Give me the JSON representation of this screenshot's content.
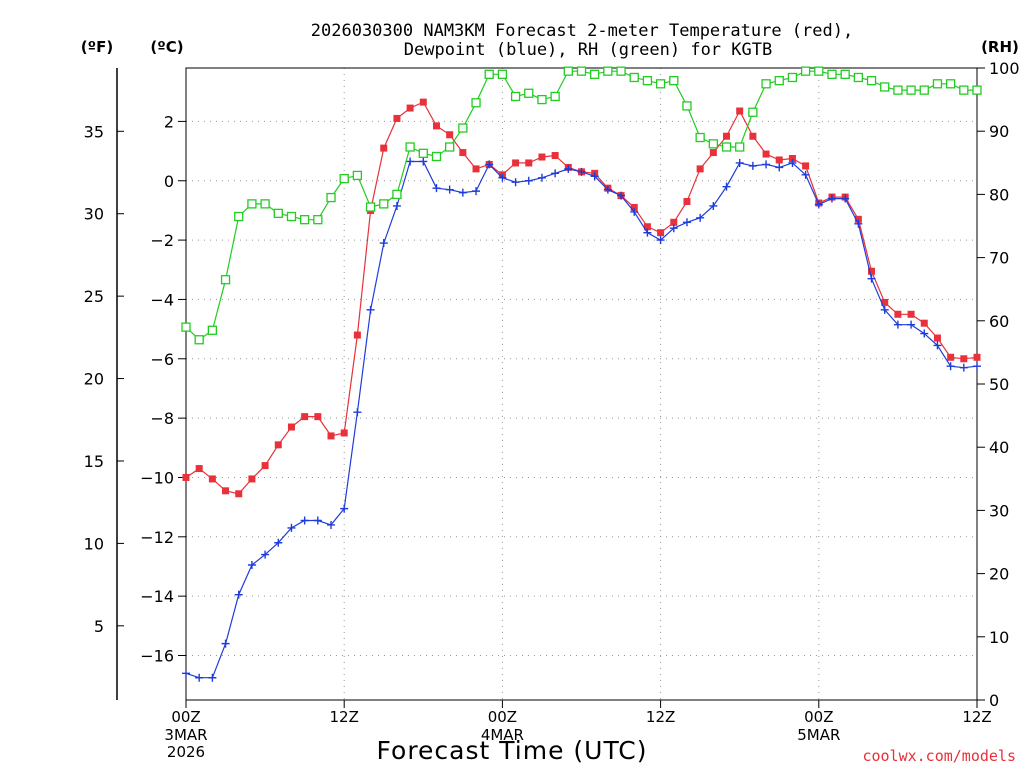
{
  "chart_data": {
    "type": "line",
    "title_line1": "2026030300 NAM3KM Forecast 2-meter Temperature (red),",
    "title_line2": "Dewpoint (blue), RH (green) for KGTB",
    "xlabel": "Forecast Time (UTC)",
    "credit": "coolwx.com/models",
    "unit_f": "(ºF)",
    "unit_c": "(ºC)",
    "unit_rh": "(RH)",
    "hours_range": [
      0,
      60
    ],
    "celsius_range": [
      -17.5,
      3.8
    ],
    "rh_range": [
      0,
      100
    ],
    "x_ticks": [
      {
        "hour": 0,
        "label": "00Z",
        "sub1": "3MAR",
        "sub2": "2026"
      },
      {
        "hour": 12,
        "label": "12Z",
        "sub1": "",
        "sub2": ""
      },
      {
        "hour": 24,
        "label": "00Z",
        "sub1": "4MAR",
        "sub2": ""
      },
      {
        "hour": 36,
        "label": "12Z",
        "sub1": "",
        "sub2": ""
      },
      {
        "hour": 48,
        "label": "00Z",
        "sub1": "5MAR",
        "sub2": ""
      },
      {
        "hour": 60,
        "label": "12Z",
        "sub1": "",
        "sub2": ""
      }
    ],
    "celsius_ticks": [
      2,
      0,
      -2,
      -4,
      -6,
      -8,
      -10,
      -12,
      -14,
      -16
    ],
    "fahrenheit_ticks": [
      35,
      30,
      25,
      20,
      15,
      10,
      5
    ],
    "rh_ticks": [
      100,
      90,
      80,
      70,
      60,
      50,
      40,
      30,
      20,
      10,
      0
    ],
    "hours": [
      0,
      1,
      2,
      3,
      4,
      5,
      6,
      7,
      8,
      9,
      10,
      11,
      12,
      13,
      14,
      15,
      16,
      17,
      18,
      19,
      20,
      21,
      22,
      23,
      24,
      25,
      26,
      27,
      28,
      29,
      30,
      31,
      32,
      33,
      34,
      35,
      36,
      37,
      38,
      39,
      40,
      41,
      42,
      43,
      44,
      45,
      46,
      47,
      48,
      49,
      50,
      51,
      52,
      53,
      54,
      55,
      56,
      57,
      58,
      59,
      60
    ],
    "series": [
      {
        "name": "Temperature",
        "color": "#e8313a",
        "values": [
          -10.0,
          -9.7,
          -10.05,
          -10.45,
          -10.55,
          -10.05,
          -9.6,
          -8.9,
          -8.3,
          -7.95,
          -7.95,
          -8.6,
          -8.5,
          -5.2,
          -1.0,
          1.1,
          2.1,
          2.45,
          2.65,
          1.85,
          1.55,
          0.95,
          0.4,
          0.55,
          0.2,
          0.6,
          0.6,
          0.8,
          0.85,
          0.45,
          0.3,
          0.25,
          -0.25,
          -0.5,
          -0.9,
          -1.55,
          -1.75,
          -1.4,
          -0.7,
          0.4,
          0.95,
          1.5,
          2.35,
          1.5,
          0.9,
          0.7,
          0.75,
          0.5,
          -0.75,
          -0.55,
          -0.55,
          -1.3,
          -3.05,
          -4.1,
          -4.5,
          -4.5,
          -4.8,
          -5.3,
          -5.95,
          -6.0,
          -5.95
        ]
      },
      {
        "name": "Dewpoint",
        "color": "#1e3cdc",
        "values": [
          -16.6,
          -16.75,
          -16.75,
          -15.6,
          -13.95,
          -12.95,
          -12.6,
          -12.2,
          -11.7,
          -11.45,
          -11.45,
          -11.6,
          -11.05,
          -7.8,
          -4.35,
          -2.1,
          -0.85,
          0.65,
          0.65,
          -0.25,
          -0.3,
          -0.4,
          -0.35,
          0.55,
          0.1,
          -0.05,
          0.0,
          0.1,
          0.25,
          0.4,
          0.3,
          0.15,
          -0.3,
          -0.5,
          -1.05,
          -1.75,
          -2.0,
          -1.6,
          -1.4,
          -1.25,
          -0.85,
          -0.2,
          0.6,
          0.5,
          0.55,
          0.45,
          0.6,
          0.2,
          -0.8,
          -0.6,
          -0.6,
          -1.45,
          -3.3,
          -4.35,
          -4.85,
          -4.85,
          -5.15,
          -5.55,
          -6.25,
          -6.3,
          -6.25
        ]
      },
      {
        "name": "RH",
        "color": "#22cc22",
        "values": [
          59,
          57,
          58.5,
          66.5,
          76.5,
          78.5,
          78.5,
          77,
          76.5,
          76,
          76,
          79.5,
          82.5,
          83,
          78,
          78.5,
          80,
          87.5,
          86.5,
          86,
          87.5,
          90.5,
          94.5,
          99,
          99,
          95.5,
          96,
          95,
          95.5,
          99.5,
          99.5,
          99,
          99.5,
          99.5,
          98.5,
          98,
          97.5,
          98,
          94,
          89,
          88,
          87.5,
          87.5,
          93,
          97.5,
          98,
          98.5,
          99.5,
          99.5,
          99,
          99,
          98.5,
          98,
          97,
          96.5,
          96.5,
          96.5,
          97.5,
          97.5,
          96.5,
          96.5
        ]
      }
    ]
  }
}
